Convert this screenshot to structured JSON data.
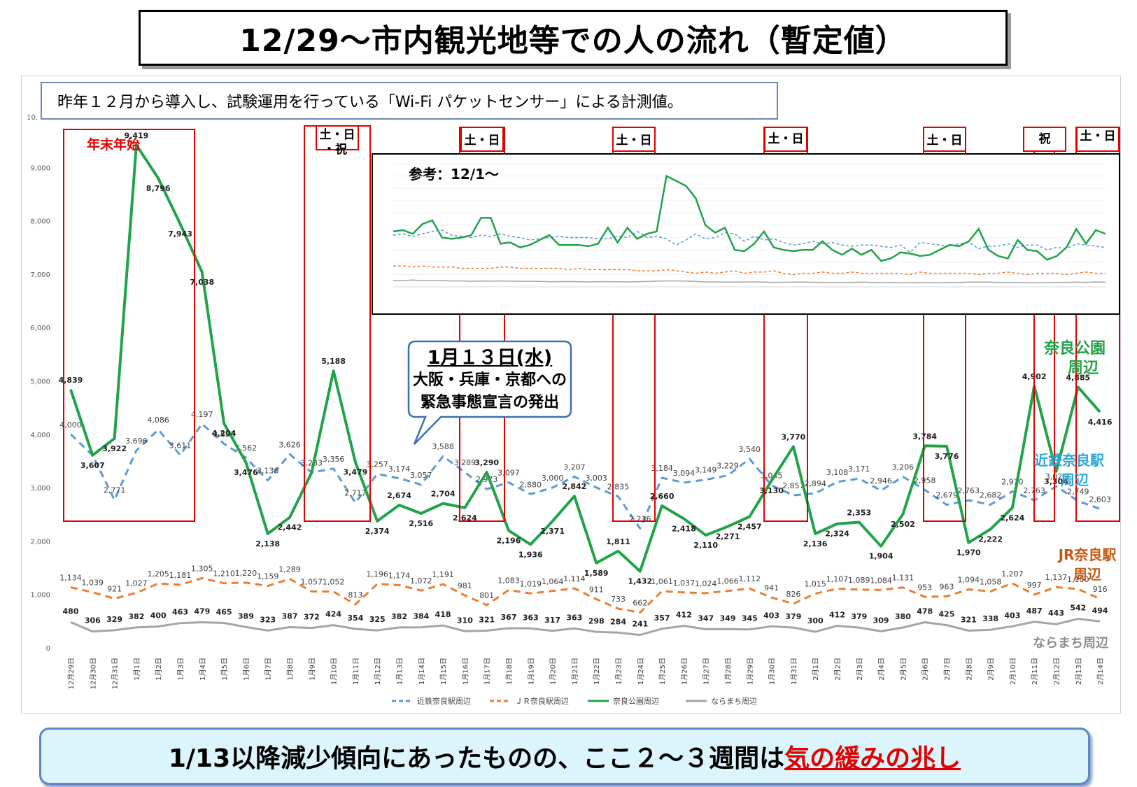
{
  "title": "12/29～市内観光地等での人の流れ（暫定値）",
  "note": "昨年１２月から導入し、試験運用を行っている「Wi-Fi パケットセンサー」による計測値。",
  "y_axis_partial_label": "10,",
  "annotations": {
    "year_end": "年末年始",
    "sat_sun_holiday_line1": "土・日",
    "sat_sun_holiday_line2": "・祝",
    "sat_sun": "土・日",
    "holiday": "祝"
  },
  "callout": {
    "title": "1月１３日(水)",
    "line1": "大阪・兵庫・京都への",
    "line2": "緊急事態宣言の発出"
  },
  "inset": {
    "title": "参考：12/1～"
  },
  "series_labels": {
    "park_line1": "奈良公園",
    "park_line2": "周辺",
    "kintetsu_line1": "近鉄奈良駅",
    "kintetsu_line2": "周辺",
    "jr_line1": "JR奈良駅",
    "jr_line2": "周辺",
    "naramachi": "ならまち周辺"
  },
  "bottom": {
    "prefix": "1/13以降減少傾向にあったものの、ここ２～３週間は",
    "highlight": "気の緩みの兆し"
  },
  "colors": {
    "kintetsu": "#5b9bd5",
    "jr": "#ed7d31",
    "park": "#22a34a",
    "naramachi": "#a5a5a5",
    "box_red": "#e00000"
  },
  "chart_data": {
    "type": "line",
    "ylim": [
      0,
      10000
    ],
    "yticks": [
      0,
      1000,
      2000,
      3000,
      4000,
      5000,
      6000,
      7000,
      8000,
      9000
    ],
    "ytick_labels": [
      "0",
      "1,000",
      "2,000",
      "3,000",
      "4,000",
      "5,000",
      "6,000",
      "7,000",
      "8,000",
      "9,000"
    ],
    "categories": [
      "12月29日",
      "12月30日",
      "12月31日",
      "1月1日",
      "1月2日",
      "1月3日",
      "1月4日",
      "1月5日",
      "1月6日",
      "1月7日",
      "1月8日",
      "1月9日",
      "1月10日",
      "1月11日",
      "1月12日",
      "1月13日",
      "1月14日",
      "1月15日",
      "1月16日",
      "1月17日",
      "1月18日",
      "1月19日",
      "1月20日",
      "1月21日",
      "1月22日",
      "1月23日",
      "1月24日",
      "1月25日",
      "1月26日",
      "1月27日",
      "1月28日",
      "1月29日",
      "1月30日",
      "1月31日",
      "2月1日",
      "2月2日",
      "2月3日",
      "2月4日",
      "2月5日",
      "2月6日",
      "2月7日",
      "2月8日",
      "2月9日",
      "2月10日",
      "2月11日",
      "2月12日",
      "2月13日",
      "2月14日"
    ],
    "series": [
      {
        "name": "近鉄奈良駅周辺",
        "style": "dashed",
        "values": [
          4000,
          3607,
          2771,
          3696,
          4086,
          3611,
          4197,
          3823,
          3562,
          3136,
          3626,
          3283,
          3356,
          2717,
          3257,
          3174,
          3057,
          3588,
          3289,
          2973,
          3097,
          2880,
          3000,
          3207,
          3003,
          2835,
          2236,
          3184,
          3094,
          3149,
          3229,
          3540,
          3045,
          2857,
          2894,
          3108,
          3171,
          2946,
          3206,
          2958,
          2679,
          2763,
          2682,
          2930,
          2763,
          3026,
          2749,
          2603
        ],
        "labels": [
          "4,000",
          "",
          "2,771",
          "3,696",
          "4,086",
          "3,611",
          "4,197",
          "3,823",
          "3,562",
          "3,136",
          "3,626",
          "3,283",
          "3,356",
          "2,717",
          "3,257",
          "3,174",
          "3,057",
          "3,588",
          "3,289",
          "2,973",
          "3,097",
          "2,880",
          "3,000",
          "3,207",
          "3,003",
          "2,835",
          "2,236",
          "3,184",
          "3,094",
          "3,149",
          "3,229",
          "3,540",
          "3,045",
          "2,857",
          "2,894",
          "3,108",
          "3,171",
          "2,946",
          "3,206",
          "2,958",
          "2,679",
          "2,763",
          "2,682",
          "2,930",
          "2,763",
          "3,026",
          "2,749",
          "2,603"
        ]
      },
      {
        "name": "ＪＲ奈良駅周辺",
        "style": "dashed",
        "values": [
          1134,
          1039,
          921,
          1027,
          1205,
          1181,
          1305,
          1210,
          1220,
          1159,
          1289,
          1057,
          1052,
          813,
          1196,
          1174,
          1072,
          1191,
          981,
          801,
          1083,
          1019,
          1064,
          1114,
          911,
          733,
          662,
          1061,
          1037,
          1024,
          1066,
          1112,
          941,
          826,
          1015,
          1107,
          1089,
          1084,
          1131,
          953,
          963,
          1094,
          1058,
          1207,
          997,
          1137,
          1100,
          916
        ],
        "labels": [
          "1,134",
          "1,039",
          "921",
          "1,027",
          "1,205",
          "1,181",
          "1,305",
          "1,210",
          "1,220",
          "1,159",
          "1,289",
          "1,057",
          "1,052",
          "813",
          "1,196",
          "1,174",
          "1,072",
          "1,191",
          "981",
          "801",
          "1,083",
          "1,019",
          "1,064",
          "1,114",
          "911",
          "733",
          "662",
          "1,061",
          "1,037",
          "1,024",
          "1,066",
          "1,112",
          "941",
          "826",
          "1,015",
          "1,107",
          "1,089",
          "1,084",
          "1,131",
          "953",
          "963",
          "1,094",
          "1,058",
          "1,207",
          "997",
          "1,137",
          "1,100",
          "916"
        ]
      },
      {
        "name": "奈良公園周辺",
        "style": "solid",
        "values": [
          4839,
          3607,
          3922,
          9419,
          8796,
          7943,
          7038,
          4204,
          3476,
          2138,
          2442,
          3279,
          5188,
          3479,
          2374,
          2674,
          2516,
          2704,
          2624,
          3290,
          2196,
          1936,
          2371,
          2842,
          1589,
          1811,
          1432,
          2660,
          2418,
          2110,
          2271,
          2457,
          3130,
          3770,
          2136,
          2324,
          2353,
          1904,
          2502,
          3784,
          3776,
          1970,
          2222,
          2624,
          4902,
          3304,
          4885,
          4416
        ],
        "labels": [
          "4,839",
          "3,607",
          "3,922",
          "9,419",
          "8,796",
          "7,943",
          "7,038",
          "4,204",
          "3,476",
          "2,138",
          "2,442",
          "",
          "5,188",
          "3,479",
          "2,374",
          "2,674",
          "2,516",
          "2,704",
          "2,624",
          "3,290",
          "2,196",
          "1,936",
          "2,371",
          "2,842",
          "1,589",
          "1,811",
          "1,432",
          "2,660",
          "2,418",
          "2,110",
          "2,271",
          "2,457",
          "3,130",
          "3,770",
          "2,136",
          "2,324",
          "2,353",
          "1,904",
          "2,502",
          "3,784",
          "3,776",
          "1,970",
          "2,222",
          "2,624",
          "4,902",
          "3,304",
          "4,885",
          "4,416"
        ]
      },
      {
        "name": "ならまち周辺",
        "style": "solid",
        "values": [
          480,
          306,
          329,
          382,
          400,
          463,
          479,
          465,
          389,
          323,
          387,
          372,
          424,
          354,
          325,
          382,
          384,
          418,
          310,
          321,
          367,
          363,
          317,
          363,
          298,
          284,
          241,
          357,
          412,
          347,
          349,
          345,
          403,
          379,
          300,
          412,
          379,
          309,
          380,
          478,
          425,
          321,
          338,
          403,
          487,
          443,
          542,
          494
        ],
        "labels": [
          "480",
          "306",
          "329",
          "382",
          "400",
          "463",
          "479",
          "465",
          "389",
          "323",
          "387",
          "372",
          "424",
          "354",
          "325",
          "382",
          "384",
          "418",
          "310",
          "321",
          "367",
          "363",
          "317",
          "363",
          "298",
          "284",
          "241",
          "357",
          "412",
          "347",
          "349",
          "345",
          "403",
          "379",
          "300",
          "412",
          "379",
          "309",
          "380",
          "478",
          "425",
          "321",
          "338",
          "403",
          "487",
          "443",
          "542",
          "494"
        ]
      }
    ],
    "legend": [
      "近鉄奈良駅周辺",
      "ＪＲ奈良駅周辺",
      "奈良公園周辺",
      "ならまち周辺"
    ],
    "legend_position": "bottom",
    "inset_chart": {
      "type": "line",
      "ylim": [
        0,
        10000
      ],
      "series": [
        {
          "name": "近鉄奈良駅周辺",
          "values": [
            4200,
            4300,
            4100,
            4300,
            4500,
            4600,
            4200,
            4100,
            4000,
            4200,
            4100,
            4300,
            4100,
            4000,
            3800,
            3900,
            4000,
            4100,
            4000,
            4000,
            4000,
            3900,
            3900,
            4100,
            4000,
            4500,
            4000,
            4100,
            3900,
            3400,
            3800,
            4300,
            3900,
            4000,
            4400,
            4300,
            3700,
            4100,
            3800,
            3900,
            3600,
            3400,
            3500,
            3700,
            3500,
            3600,
            3400,
            3300,
            3400,
            3400,
            3300,
            3200,
            3400,
            2800,
            3600,
            3500,
            3400,
            3300,
            3500,
            3600,
            3100,
            3300,
            3300,
            3500,
            3200,
            3400,
            3400,
            3000,
            3200,
            3100,
            3500,
            3400,
            3300,
            3200
          ]
        },
        {
          "name": "ＪＲ奈良駅周辺",
          "values": [
            1700,
            1700,
            1600,
            1700,
            1600,
            1600,
            1600,
            1500,
            1500,
            1500,
            1500,
            1600,
            1600,
            1500,
            1500,
            1500,
            1500,
            1500,
            1400,
            1500,
            1400,
            1400,
            1400,
            1400,
            1400,
            1300,
            1300,
            1300,
            1400,
            1300,
            1200,
            1100,
            1200,
            1100,
            1200,
            1300,
            1100,
            1200,
            1200,
            1300,
            1100,
            1000,
            1100,
            1100,
            1200,
            1100,
            1100,
            1200,
            1100,
            1100,
            1100,
            1100,
            1100,
            1000,
            1200,
            1100,
            1100,
            1100,
            1100,
            1100,
            1000,
            1100,
            1100,
            1200,
            1100,
            1000,
            1100,
            1100,
            1100,
            1000,
            1100,
            1200,
            1100,
            1100
          ]
        },
        {
          "name": "奈良公園周辺",
          "values": [
            4500,
            4600,
            4300,
            5100,
            5400,
            4000,
            3900,
            4000,
            4200,
            5600,
            5600,
            3500,
            3600,
            3200,
            3400,
            3800,
            4200,
            3400,
            3400,
            3400,
            3300,
            3500,
            4800,
            3600,
            4800,
            3900,
            4300,
            4500,
            9000,
            8600,
            8200,
            7200,
            5000,
            4400,
            4800,
            3000,
            2900,
            3500,
            4500,
            3200,
            3000,
            2900,
            3000,
            3000,
            3700,
            3000,
            2600,
            3100,
            2600,
            3000,
            2100,
            2300,
            2800,
            2700,
            2500,
            2600,
            3000,
            3400,
            3300,
            3700,
            4700,
            3000,
            2500,
            2300,
            3800,
            3000,
            2900,
            2200,
            2500,
            3200,
            4700,
            3500,
            4600,
            4300
          ]
        },
        {
          "name": "ならまち周辺",
          "values": [
            500,
            500,
            550,
            500,
            500,
            500,
            480,
            480,
            450,
            470,
            460,
            480,
            460,
            450,
            450,
            440,
            420,
            420,
            430,
            420,
            400,
            420,
            420,
            410,
            400,
            420,
            430,
            460,
            480,
            480,
            470,
            440,
            400,
            400,
            380,
            390,
            390,
            400,
            380,
            360,
            370,
            380,
            380,
            370,
            360,
            360,
            350,
            350,
            380,
            360,
            340,
            360,
            330,
            330,
            340,
            340,
            330,
            360,
            360,
            380,
            380,
            380,
            360,
            350,
            350,
            330,
            330,
            340,
            350,
            360,
            380,
            360,
            400,
            380
          ]
        }
      ]
    }
  }
}
